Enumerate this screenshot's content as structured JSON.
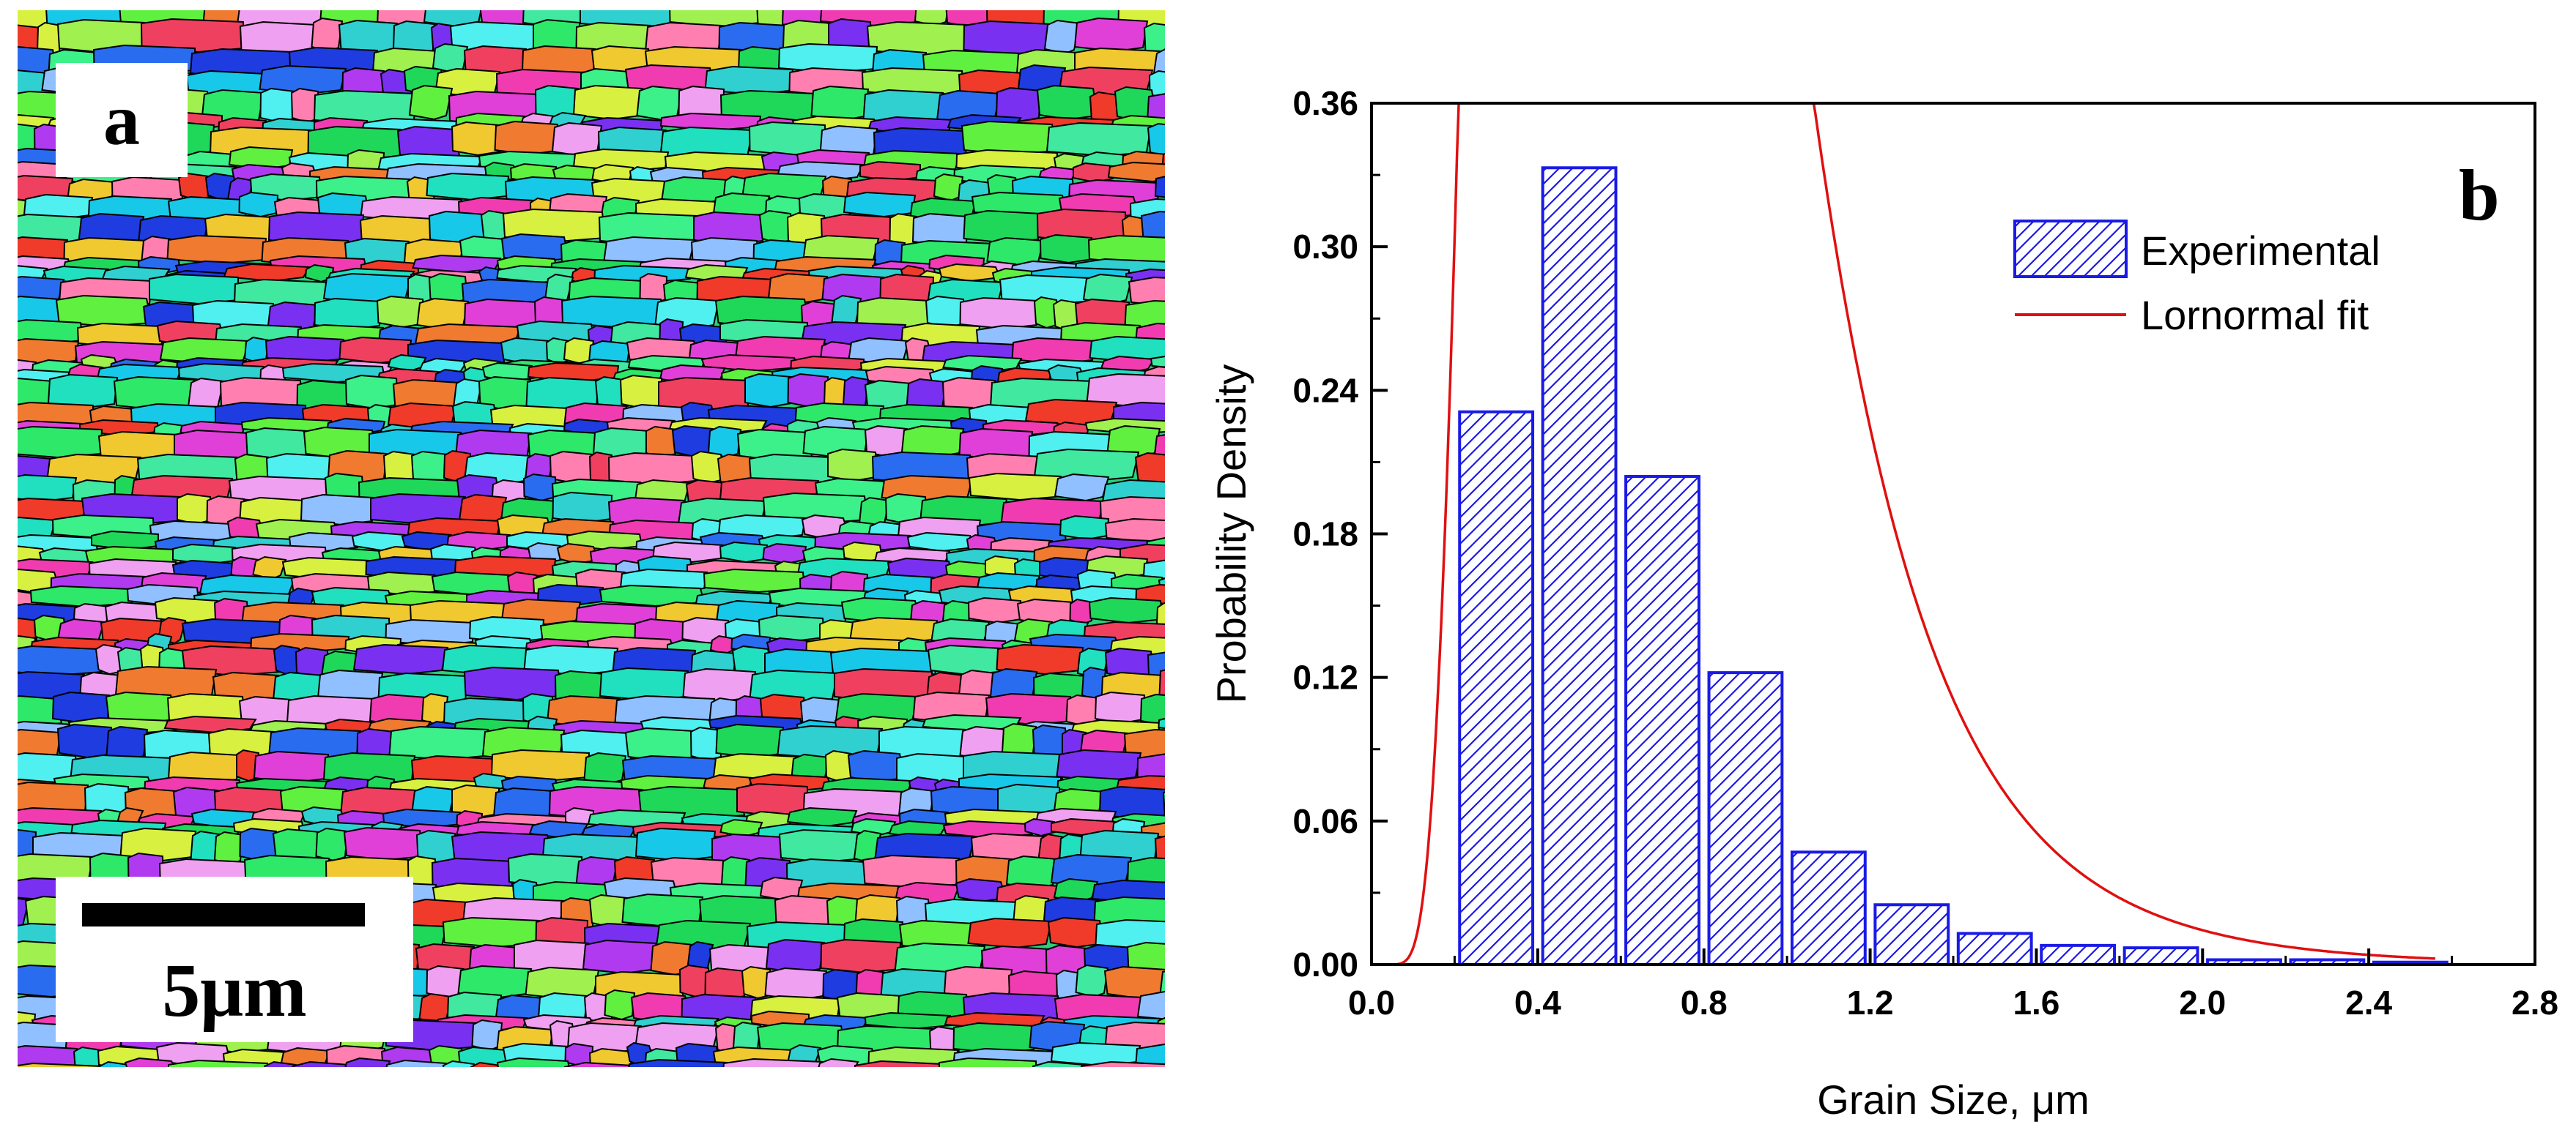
{
  "panel_a": {
    "label": "a",
    "scale_bar_label": "5μm",
    "grain_colors": [
      "#2ee86a",
      "#1fd85a",
      "#3cf08a",
      "#20e0c0",
      "#18c8e8",
      "#2a6cf0",
      "#1e3ce0",
      "#7a30f0",
      "#b03af0",
      "#e040d8",
      "#f03cb0",
      "#f04060",
      "#f03a2a",
      "#f07a30",
      "#f0c830",
      "#d8f040",
      "#a0f050",
      "#60f040",
      "#40e8a0",
      "#30d0d0",
      "#f0a0f0",
      "#90c0ff",
      "#ff80b0",
      "#50f0f0"
    ]
  },
  "chart_data": {
    "type": "bar",
    "panel_label": "b",
    "xlabel": "Grain Size, μm",
    "ylabel": "Probability Density",
    "xlim": [
      0.0,
      2.8
    ],
    "ylim": [
      0.0,
      0.36
    ],
    "xticks": [
      "0.0",
      "0.4",
      "0.8",
      "1.2",
      "1.6",
      "2.0",
      "2.4",
      "2.8"
    ],
    "yticks": [
      "0.00",
      "0.06",
      "0.12",
      "0.18",
      "0.24",
      "0.30",
      "0.36"
    ],
    "bins": [
      {
        "center": 0.3,
        "value": 0.231
      },
      {
        "center": 0.5,
        "value": 0.333
      },
      {
        "center": 0.7,
        "value": 0.204
      },
      {
        "center": 0.9,
        "value": 0.122
      },
      {
        "center": 1.1,
        "value": 0.047
      },
      {
        "center": 1.3,
        "value": 0.025
      },
      {
        "center": 1.5,
        "value": 0.013
      },
      {
        "center": 1.7,
        "value": 0.008
      },
      {
        "center": 1.9,
        "value": 0.007
      },
      {
        "center": 2.1,
        "value": 0.002
      },
      {
        "center": 2.3,
        "value": 0.002
      },
      {
        "center": 2.5,
        "value": 0.001
      }
    ],
    "bin_width": 0.2,
    "fit": {
      "name": "Lornormal fit",
      "type": "lognormal",
      "mu": -0.53,
      "sigma": 0.47
    },
    "legend": [
      "Experimental",
      "Lornormal fit"
    ],
    "legend_position": "top-right",
    "colors": {
      "bars": "#1a1ae6",
      "fit": "#e01010",
      "axis": "#000000"
    }
  }
}
